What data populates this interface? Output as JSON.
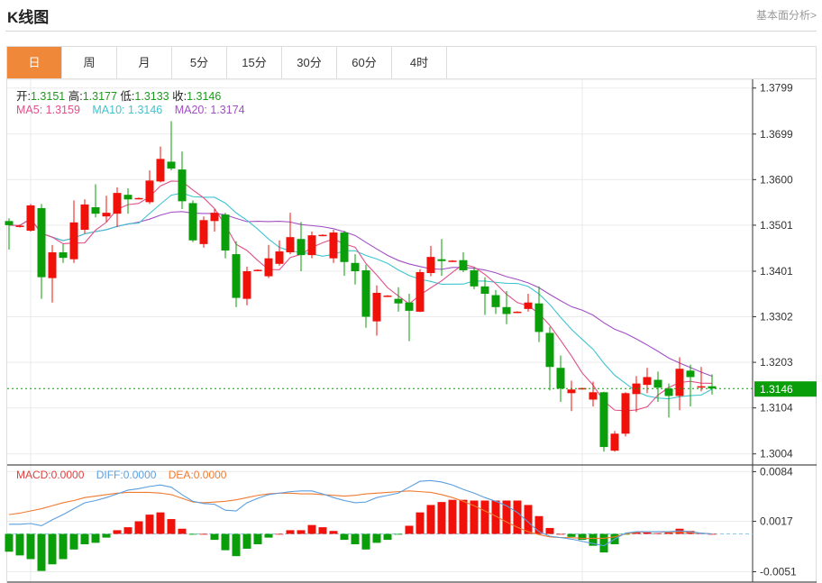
{
  "header": {
    "title": "K线图",
    "link_label": "基本面分析>"
  },
  "tabs": [
    {
      "label": "日",
      "active": true
    },
    {
      "label": "周"
    },
    {
      "label": "月"
    },
    {
      "label": "5分"
    },
    {
      "label": "15分"
    },
    {
      "label": "30分"
    },
    {
      "label": "60分"
    },
    {
      "label": "4时"
    }
  ],
  "ohlc": {
    "open_label": "开:",
    "open": "1.3151",
    "high_label": "高:",
    "high": "1.3177",
    "low_label": "低:",
    "low": "1.3133",
    "close_label": "收:",
    "close": "1.3146"
  },
  "ma": {
    "ma5_label": "MA5:",
    "ma5": "1.3159",
    "ma10_label": "MA10:",
    "ma10": "1.3146",
    "ma20_label": "MA20:",
    "ma20": "1.3174"
  },
  "macd_legend": {
    "macd_label": "MACD:",
    "macd": "0.0000",
    "diff_label": "DIFF:",
    "diff": "0.0000",
    "dea_label": "DEA:",
    "dea": "0.0000"
  },
  "colors": {
    "up": "#f0120a",
    "down": "#0a9e0a",
    "ma5": "#e0508a",
    "ma10": "#3fc4d0",
    "ma20": "#a24fc4",
    "diff": "#5a9fe0",
    "dea": "#f07a30",
    "accent": "#f0883a"
  },
  "chart_data": [
    {
      "type": "candlestick",
      "price_ticks": [
        "1.3799",
        "1.3699",
        "1.3600",
        "1.3501",
        "1.3401",
        "1.3302",
        "1.3203",
        "1.3104",
        "1.3004"
      ],
      "ylim": [
        1.298,
        1.3818
      ],
      "current_price": "1.3146",
      "candles": [
        [
          1.351,
          1.3501,
          1.3516,
          1.3448
        ],
        [
          1.3498,
          1.35,
          1.3502,
          1.3496
        ],
        [
          1.3489,
          1.3544,
          1.3547,
          1.3487
        ],
        [
          1.3538,
          1.3388,
          1.3547,
          1.3341
        ],
        [
          1.3386,
          1.3442,
          1.3458,
          1.3333
        ],
        [
          1.3442,
          1.343,
          1.346,
          1.3419
        ],
        [
          1.3427,
          1.3507,
          1.3555,
          1.3419
        ],
        [
          1.3491,
          1.3546,
          1.3557,
          1.3483
        ],
        [
          1.354,
          1.3526,
          1.359,
          1.3518
        ],
        [
          1.352,
          1.3528,
          1.3565,
          1.3508
        ],
        [
          1.3526,
          1.3571,
          1.3583,
          1.3497
        ],
        [
          1.3567,
          1.3557,
          1.3581,
          1.3526
        ],
        [
          1.3558,
          1.356,
          1.3561,
          1.3557
        ],
        [
          1.3551,
          1.3598,
          1.362,
          1.3547
        ],
        [
          1.3596,
          1.3645,
          1.3672,
          1.3594
        ],
        [
          1.3639,
          1.3624,
          1.3727,
          1.362
        ],
        [
          1.3622,
          1.3553,
          1.3661,
          1.3536
        ],
        [
          1.3549,
          1.3468,
          1.3555,
          1.3464
        ],
        [
          1.346,
          1.3512,
          1.352,
          1.3452
        ],
        [
          1.351,
          1.3528,
          1.3536,
          1.3487
        ],
        [
          1.3524,
          1.3446,
          1.3528,
          1.3429
        ],
        [
          1.3438,
          1.3343,
          1.3466,
          1.3323
        ],
        [
          1.3341,
          1.3401,
          1.3411,
          1.3327
        ],
        [
          1.3402,
          1.3404,
          1.3405,
          1.3401
        ],
        [
          1.339,
          1.3429,
          1.3458,
          1.3386
        ],
        [
          1.3417,
          1.3444,
          1.3468,
          1.3413
        ],
        [
          1.3442,
          1.3475,
          1.3528,
          1.3438
        ],
        [
          1.3471,
          1.3436,
          1.3508,
          1.3401
        ],
        [
          1.3436,
          1.3479,
          1.3487,
          1.3429
        ],
        [
          1.3478,
          1.348,
          1.3481,
          1.3477
        ],
        [
          1.3429,
          1.3485,
          1.3491,
          1.3419
        ],
        [
          1.3485,
          1.3421,
          1.3489,
          1.3391
        ],
        [
          1.3419,
          1.3401,
          1.3438,
          1.3372
        ],
        [
          1.3403,
          1.3302,
          1.3415,
          1.3278
        ],
        [
          1.3292,
          1.3354,
          1.337,
          1.3261
        ],
        [
          1.3346,
          1.3348,
          1.3349,
          1.3345
        ],
        [
          1.3341,
          1.3331,
          1.3366,
          1.3313
        ],
        [
          1.3333,
          1.3315,
          1.3352,
          1.3249
        ],
        [
          1.3313,
          1.3399,
          1.3405,
          1.3312
        ],
        [
          1.3397,
          1.3432,
          1.3456,
          1.339
        ],
        [
          1.3427,
          1.3423,
          1.3471,
          1.3391
        ],
        [
          1.3422,
          1.3424,
          1.3425,
          1.3421
        ],
        [
          1.3425,
          1.3403,
          1.3442,
          1.3399
        ],
        [
          1.3403,
          1.3368,
          1.3409,
          1.3362
        ],
        [
          1.3368,
          1.3352,
          1.3388,
          1.3306
        ],
        [
          1.3349,
          1.3323,
          1.336,
          1.3308
        ],
        [
          1.3323,
          1.3308,
          1.3358,
          1.3286
        ],
        [
          1.3311,
          1.3313,
          1.3314,
          1.331
        ],
        [
          1.3319,
          1.3333,
          1.3352,
          1.3313
        ],
        [
          1.3331,
          1.3269,
          1.3368,
          1.3247
        ],
        [
          1.3267,
          1.3193,
          1.328,
          1.3142
        ],
        [
          1.3191,
          1.3146,
          1.3218,
          1.3117
        ],
        [
          1.3136,
          1.3144,
          1.3163,
          1.3097
        ],
        [
          1.3145,
          1.3147,
          1.3148,
          1.3144
        ],
        [
          1.3122,
          1.3138,
          1.3161,
          1.3107
        ],
        [
          1.3138,
          1.3019,
          1.3139,
          1.3009
        ],
        [
          1.3011,
          1.3048,
          1.3054,
          1.3009
        ],
        [
          1.3048,
          1.3136,
          1.3138,
          1.3042
        ],
        [
          1.3134,
          1.3157,
          1.3173,
          1.3095
        ],
        [
          1.3154,
          1.3171,
          1.3191,
          1.3136
        ],
        [
          1.3165,
          1.3148,
          1.3183,
          1.3117
        ],
        [
          1.3146,
          1.313,
          1.3157,
          1.3083
        ],
        [
          1.313,
          1.3189,
          1.3214,
          1.3099
        ],
        [
          1.3185,
          1.3171,
          1.3198,
          1.3107
        ],
        [
          1.3149,
          1.3151,
          1.3193,
          1.314
        ],
        [
          1.3151,
          1.3146,
          1.3177,
          1.3133
        ]
      ]
    },
    {
      "type": "bar+line",
      "macd_ticks": [
        "0.0084",
        "0.0017",
        "-0.0051"
      ],
      "ylim": [
        -0.0065,
        0.0093
      ],
      "macd": [
        -0.0024,
        -0.0029,
        -0.0034,
        -0.005,
        -0.0041,
        -0.0034,
        -0.0021,
        -0.0014,
        -0.0012,
        -0.0005,
        0.0005,
        0.0009,
        0.0017,
        0.0026,
        0.0029,
        0.002,
        0.0007,
        -0.0001,
        0.0,
        -0.0008,
        -0.0022,
        -0.003,
        -0.002,
        -0.0014,
        -0.0005,
        0.0,
        0.0005,
        0.0005,
        0.0012,
        0.0009,
        0.0004,
        -0.0008,
        -0.0014,
        -0.0021,
        -0.0012,
        -0.0008,
        -0.0001,
        0.0011,
        0.0029,
        0.0039,
        0.0043,
        0.0046,
        0.0046,
        0.0045,
        0.0045,
        0.0045,
        0.0045,
        0.0045,
        0.0039,
        0.0024,
        0.0008,
        0.0,
        -0.0004,
        -0.0008,
        -0.0016,
        -0.0025,
        -0.0014,
        -0.0001,
        0.0003,
        0.0002,
        0.0001,
        0.0002,
        0.0007,
        0.0004,
        0.0001,
        0.0
      ],
      "diff": [
        0.0013,
        0.0013,
        0.0014,
        0.0011,
        0.0019,
        0.0026,
        0.0034,
        0.0042,
        0.0045,
        0.0049,
        0.0054,
        0.0059,
        0.0061,
        0.0064,
        0.0066,
        0.0063,
        0.0053,
        0.0044,
        0.0041,
        0.004,
        0.0032,
        0.0031,
        0.0042,
        0.0048,
        0.0053,
        0.0055,
        0.0057,
        0.0058,
        0.0058,
        0.0054,
        0.0049,
        0.0045,
        0.0042,
        0.0043,
        0.0049,
        0.0052,
        0.0055,
        0.0063,
        0.0071,
        0.0072,
        0.007,
        0.0066,
        0.006,
        0.0055,
        0.0049,
        0.0044,
        0.0038,
        0.0029,
        0.0016,
        0.0003,
        -0.0003,
        -0.0005,
        -0.0007,
        -0.001,
        -0.0013,
        -0.0016,
        -0.0007,
        0.0001,
        0.0003,
        0.0003,
        0.0003,
        0.0003,
        0.0004,
        0.0003,
        0.0001,
        0.0
      ],
      "dea": [
        0.0026,
        0.0028,
        0.0031,
        0.0034,
        0.0038,
        0.0042,
        0.0045,
        0.0049,
        0.0051,
        0.0053,
        0.0055,
        0.0056,
        0.0056,
        0.0056,
        0.0055,
        0.0053,
        0.0048,
        0.0043,
        0.0042,
        0.0043,
        0.0044,
        0.0046,
        0.0049,
        0.0052,
        0.0054,
        0.0055,
        0.0055,
        0.0054,
        0.0054,
        0.0053,
        0.0052,
        0.0051,
        0.0052,
        0.0054,
        0.0055,
        0.0056,
        0.0057,
        0.0058,
        0.0057,
        0.0056,
        0.0053,
        0.0049,
        0.0044,
        0.0038,
        0.0031,
        0.0024,
        0.0016,
        0.0009,
        0.0003,
        -0.0001,
        -0.0004,
        -0.0005,
        -0.0005,
        -0.0006,
        -0.0006,
        -0.0006,
        -0.0004,
        0.0,
        0.0002,
        0.0003,
        0.0003,
        0.0002,
        0.0002,
        0.0002,
        0.0001,
        0.0
      ]
    }
  ]
}
